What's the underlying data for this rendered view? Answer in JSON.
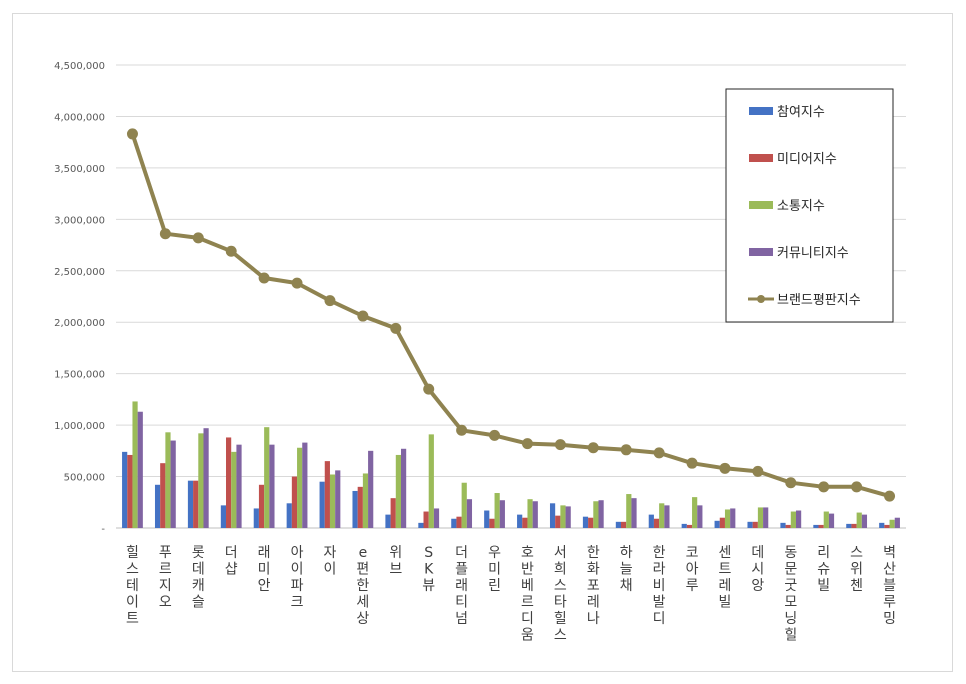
{
  "chart_data": {
    "type": "bar",
    "title": "",
    "xlabel": "",
    "ylabel": "",
    "ylim": [
      0,
      4500000
    ],
    "yticks": [
      {
        "value": 0,
        "label": "-"
      },
      {
        "value": 500000,
        "label": "500,000"
      },
      {
        "value": 1000000,
        "label": "1,000,000"
      },
      {
        "value": 1500000,
        "label": "1,500,000"
      },
      {
        "value": 2000000,
        "label": "2,000,000"
      },
      {
        "value": 2500000,
        "label": "2,500,000"
      },
      {
        "value": 3000000,
        "label": "3,000,000"
      },
      {
        "value": 3500000,
        "label": "3,500,000"
      },
      {
        "value": 4000000,
        "label": "4,000,000"
      },
      {
        "value": 4500000,
        "label": "4,500,000"
      }
    ],
    "grid": true,
    "legend_position": "top-right",
    "categories": [
      "힐스테이트",
      "푸르지오",
      "롯데캐슬",
      "더샵",
      "래미안",
      "아이파크",
      "자이",
      "e편한세상",
      "위브",
      "SK뷰",
      "더플래티넘",
      "우미린",
      "호반베르디움",
      "서희스타힐스",
      "한화포레나",
      "하늘채",
      "한라비발디",
      "코아루",
      "센트레빌",
      "데시앙",
      "동문굿모닝힐",
      "리슈빌",
      "스위첸",
      "벽산블루밍"
    ],
    "series": [
      {
        "name": "참여지수",
        "kind": "bar",
        "color": "#4472c4",
        "values": [
          740000,
          420000,
          460000,
          220000,
          190000,
          240000,
          450000,
          360000,
          130000,
          50000,
          90000,
          170000,
          130000,
          240000,
          110000,
          60000,
          130000,
          40000,
          70000,
          60000,
          50000,
          30000,
          40000,
          50000
        ]
      },
      {
        "name": "미디어지수",
        "kind": "bar",
        "color": "#c0504d",
        "values": [
          710000,
          630000,
          460000,
          880000,
          420000,
          500000,
          650000,
          400000,
          290000,
          160000,
          110000,
          90000,
          100000,
          120000,
          100000,
          60000,
          90000,
          30000,
          100000,
          60000,
          30000,
          30000,
          40000,
          30000
        ]
      },
      {
        "name": "소통지수",
        "kind": "bar",
        "color": "#9bbb59",
        "values": [
          1230000,
          930000,
          920000,
          740000,
          980000,
          780000,
          520000,
          530000,
          710000,
          910000,
          440000,
          340000,
          280000,
          220000,
          260000,
          330000,
          240000,
          300000,
          180000,
          200000,
          160000,
          160000,
          150000,
          80000
        ]
      },
      {
        "name": "커뮤니티지수",
        "kind": "bar",
        "color": "#8064a2",
        "values": [
          1130000,
          850000,
          970000,
          810000,
          810000,
          830000,
          560000,
          750000,
          770000,
          190000,
          280000,
          270000,
          260000,
          210000,
          270000,
          290000,
          220000,
          220000,
          190000,
          200000,
          170000,
          140000,
          130000,
          100000
        ]
      },
      {
        "name": "브랜드평판지수",
        "kind": "line",
        "color": "#8f8350",
        "values": [
          3830000,
          2860000,
          2820000,
          2690000,
          2430000,
          2380000,
          2210000,
          2060000,
          1940000,
          1350000,
          950000,
          900000,
          820000,
          810000,
          780000,
          760000,
          730000,
          630000,
          580000,
          550000,
          440000,
          400000,
          400000,
          310000
        ]
      }
    ]
  }
}
